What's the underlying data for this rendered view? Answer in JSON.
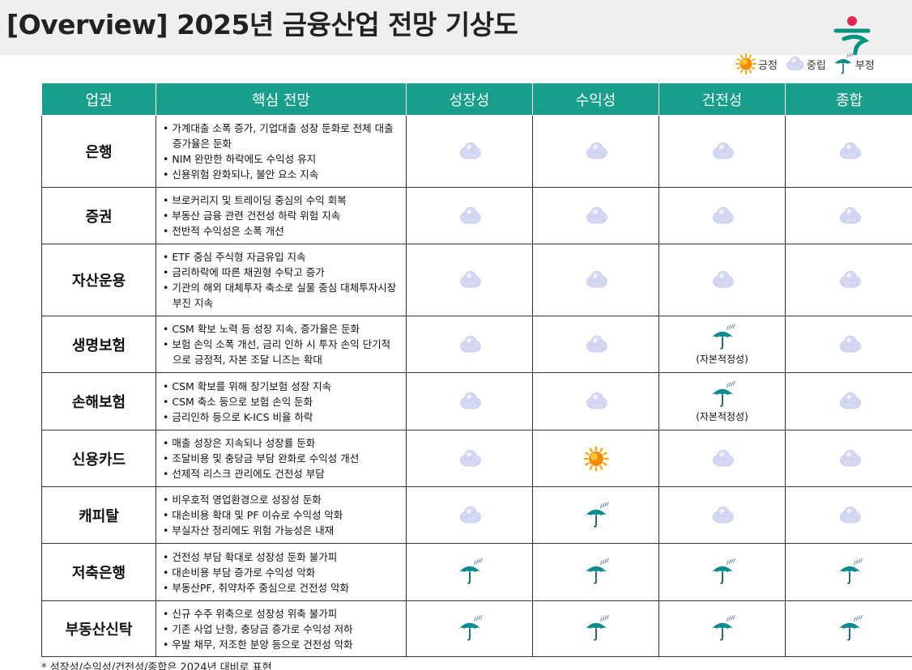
{
  "header": {
    "title": "[Overview] 2025년 금융산업 전망 기상도"
  },
  "legend": [
    "긍정",
    "중립",
    "부정"
  ],
  "table": {
    "columns": [
      "업권",
      "핵심 전망",
      "성장성",
      "수익성",
      "건전성",
      "종합"
    ],
    "rows": [
      {
        "sector": "은행",
        "points": [
          "가계대출 소폭 증가, 기업대출 성장 둔화로 전체 대출 증가율은 둔화",
          "NIM 완만한 하락에도 수익성 유지",
          "신용위험 완화되나, 불안 요소 지속"
        ],
        "cells": [
          {
            "rating": 1
          },
          {
            "rating": 1
          },
          {
            "rating": 1
          },
          {
            "rating": 1
          }
        ]
      },
      {
        "sector": "증권",
        "points": [
          "브로커리지 및 트레이딩 중심의 수익 회복",
          "부동산 금융 관련 건전성 하락 위험 지속",
          "전반적 수익성은 소폭 개선"
        ],
        "cells": [
          {
            "rating": 1
          },
          {
            "rating": 1
          },
          {
            "rating": 1
          },
          {
            "rating": 1
          }
        ]
      },
      {
        "sector": "자산운용",
        "points": [
          "ETF 중심 주식형 자금유입 지속",
          "금리하락에 따른 채권형 수탁고 증가",
          "기관의 해외 대체투자 축소로 실물 중심 대체투자시장 부진 지속"
        ],
        "cells": [
          {
            "rating": 1
          },
          {
            "rating": 1
          },
          {
            "rating": 1
          },
          {
            "rating": 1
          }
        ]
      },
      {
        "sector": "생명보험",
        "points": [
          "CSM 확보 노력 등 성장 지속, 증가율은 둔화",
          "보험 손익 소폭 개선, 금리 인하 시 투자 손익 단기적으로 긍정적, 자본 조달 니즈는 확대"
        ],
        "cells": [
          {
            "rating": 1
          },
          {
            "rating": 1
          },
          {
            "rating": 2,
            "note": "(자본적정성)"
          },
          {
            "rating": 1
          }
        ]
      },
      {
        "sector": "손해보험",
        "points": [
          "CSM 확보를 위해 장기보험 성장 지속",
          "CSM 축소 등으로 보험 손익 둔화",
          "금리인하 등으로 K-ICS 비율 하락"
        ],
        "cells": [
          {
            "rating": 1
          },
          {
            "rating": 1
          },
          {
            "rating": 2,
            "note": "(자본적정성)"
          },
          {
            "rating": 1
          }
        ]
      },
      {
        "sector": "신용카드",
        "points": [
          "매출 성장은 지속되나 성장률 둔화",
          "조달비용 및 충당금 부담 완화로 수익성 개선",
          "선제적 리스크 관리에도 건전성 부담"
        ],
        "cells": [
          {
            "rating": 1
          },
          {
            "rating": 0
          },
          {
            "rating": 1
          },
          {
            "rating": 1
          }
        ]
      },
      {
        "sector": "캐피탈",
        "points": [
          "비우호적 영업환경으로 성장성 둔화",
          "대손비용 확대 및 PF 이슈로 수익성 악화",
          "부실자산 정리에도 위험 가능성은 내재"
        ],
        "cells": [
          {
            "rating": 1
          },
          {
            "rating": 2
          },
          {
            "rating": 1
          },
          {
            "rating": 1
          }
        ]
      },
      {
        "sector": "저축은행",
        "points": [
          "건전성 부담 확대로 성장성 둔화 불가피",
          "대손비용 부담 증가로 수익성 악화",
          "부동산PF, 취약차주 중심으로 건전성 악화"
        ],
        "cells": [
          {
            "rating": 2
          },
          {
            "rating": 2
          },
          {
            "rating": 2
          },
          {
            "rating": 2
          }
        ]
      },
      {
        "sector": "부동산신탁",
        "points": [
          "신규 수주 위축으로 성장성 위축 불가피",
          "기존 사업 난항, 충당금 증가로 수익성 저하",
          "우발 채무, 저조한 분양 등으로 건전성 악화"
        ],
        "cells": [
          {
            "rating": 2
          },
          {
            "rating": 2
          },
          {
            "rating": 2
          },
          {
            "rating": 2
          }
        ]
      }
    ]
  },
  "footnote": "* 성장성/수익성/건전성/종합은 2024년 대비로 표현"
}
